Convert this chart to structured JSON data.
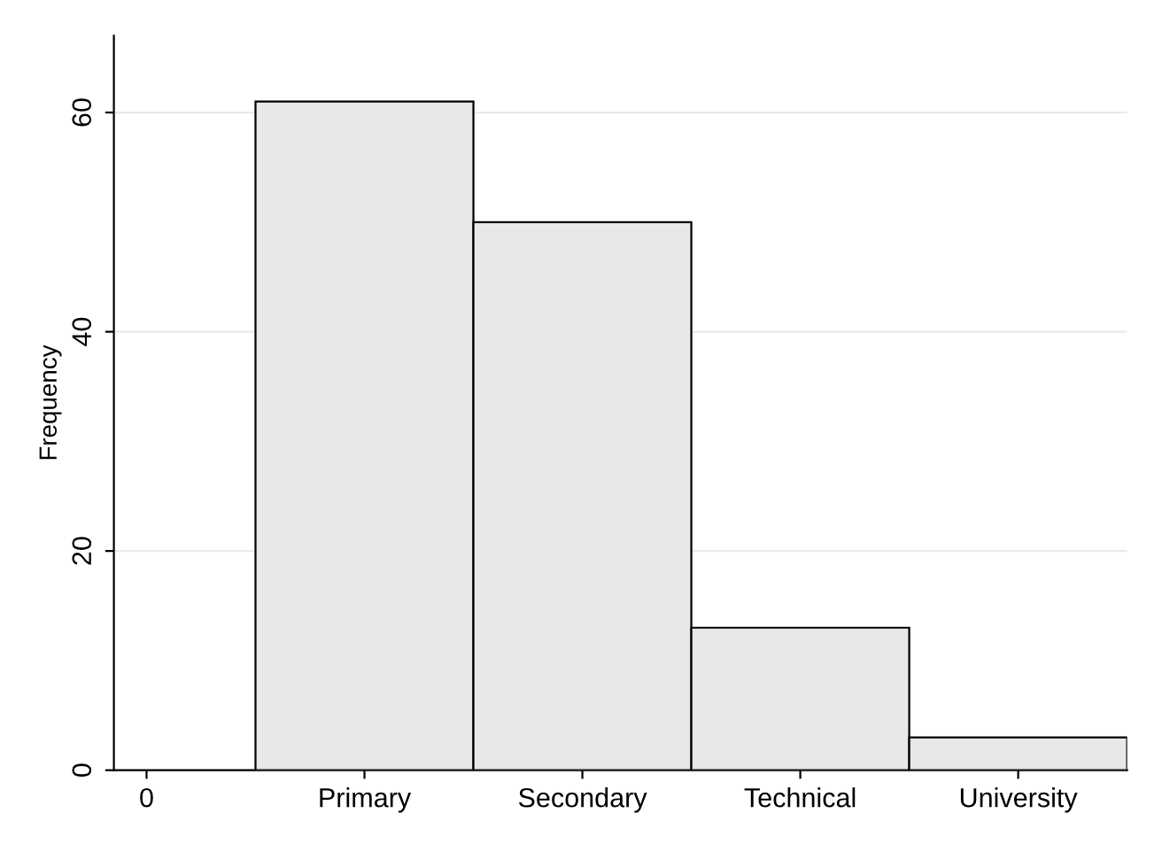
{
  "chart_data": {
    "type": "bar",
    "ylabel": "Frequency",
    "categories": [
      "0",
      "Primary",
      "Secondary",
      "Technical",
      "University"
    ],
    "values": [
      null,
      61,
      50,
      13,
      3
    ],
    "color": "#e8e8e8",
    "ylim": [
      0,
      67
    ],
    "yticks": [
      0,
      20,
      40,
      60
    ],
    "grid": "y"
  }
}
